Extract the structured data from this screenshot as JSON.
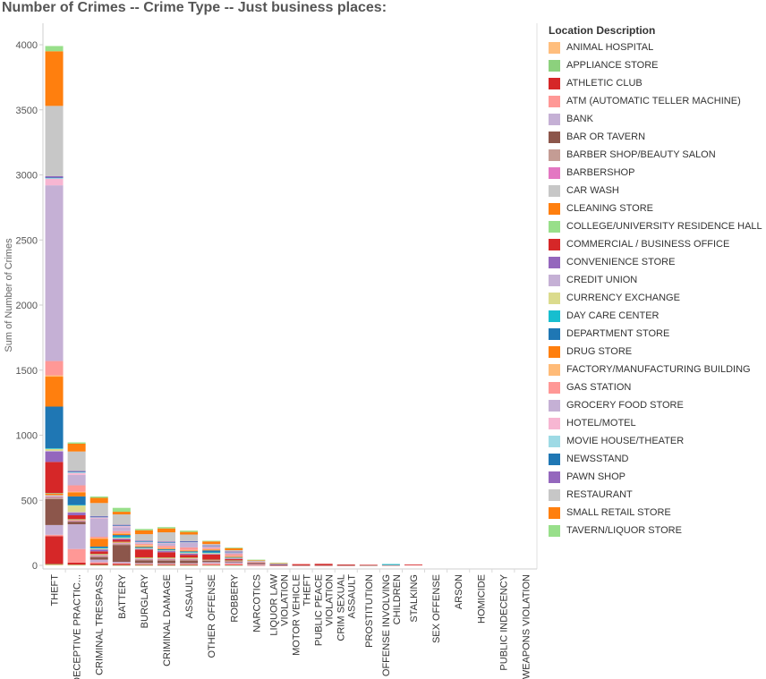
{
  "chart_data": {
    "type": "bar",
    "stacked": true,
    "title": "Number of Crimes --  Crime Type -- Just business places:",
    "xlabel": "",
    "ylabel": "Sum of Number of Crimes",
    "ylim": [
      0,
      4100
    ],
    "yticks": [
      0,
      500,
      1000,
      1500,
      2000,
      2500,
      3000,
      3500,
      4000
    ],
    "grid": false,
    "legend_position": "right",
    "legend_title": "Location Description",
    "categories": [
      "THEFT",
      "DECEPTIVE PRACTIC...",
      "CRIMINAL TRESPASS",
      "BATTERY",
      "BURGLARY",
      "CRIMINAL DAMAGE",
      "ASSAULT",
      "OTHER OFFENSE",
      "ROBBERY",
      "NARCOTICS",
      "LIQUOR LAW VIOLATION",
      "MOTOR VEHICLE THEFT",
      "PUBLIC PEACE VIOLATION",
      "CRIM SEXUAL ASSAULT",
      "PROSTITUTION",
      "OFFENSE INVOLVING CHILDREN",
      "STALKING",
      "SEX OFFENSE",
      "ARSON",
      "HOMICIDE",
      "PUBLIC INDECENCY",
      "WEAPONS VIOLATION"
    ],
    "category_lines": [
      [
        "THEFT"
      ],
      [
        "DECEPTIVE PRACTIC..."
      ],
      [
        "CRIMINAL TRESPASS"
      ],
      [
        "BATTERY"
      ],
      [
        "BURGLARY"
      ],
      [
        "CRIMINAL DAMAGE"
      ],
      [
        "ASSAULT"
      ],
      [
        "OTHER OFFENSE"
      ],
      [
        "ROBBERY"
      ],
      [
        "NARCOTICS"
      ],
      [
        "LIQUOR LAW",
        "VIOLATION"
      ],
      [
        "MOTOR VEHICLE",
        "THEFT"
      ],
      [
        "PUBLIC PEACE",
        "VIOLATION"
      ],
      [
        "CRIM SEXUAL",
        "ASSAULT"
      ],
      [
        "PROSTITUTION"
      ],
      [
        "OFFENSE INVOLVING",
        "CHILDREN"
      ],
      [
        "STALKING"
      ],
      [
        "SEX OFFENSE"
      ],
      [
        "ARSON"
      ],
      [
        "HOMICIDE"
      ],
      [
        "PUBLIC INDECENCY"
      ],
      [
        "WEAPONS VIOLATION"
      ]
    ],
    "series": [
      {
        "name": "ANIMAL HOSPITAL",
        "color": "#ffbe7d",
        "values": [
          5,
          3,
          2,
          1,
          1,
          1,
          1,
          1,
          0,
          0,
          0,
          0,
          0,
          0,
          0,
          0,
          0,
          0,
          0,
          0,
          0,
          0
        ]
      },
      {
        "name": "APPLIANCE STORE",
        "color": "#8cd17d",
        "values": [
          5,
          3,
          2,
          1,
          2,
          1,
          1,
          1,
          1,
          0,
          0,
          0,
          0,
          0,
          0,
          0,
          0,
          0,
          0,
          0,
          0,
          0
        ]
      },
      {
        "name": "ATHLETIC CLUB",
        "color": "#d62728",
        "values": [
          215,
          15,
          10,
          10,
          5,
          5,
          5,
          3,
          3,
          2,
          1,
          1,
          1,
          1,
          0,
          0,
          0,
          0,
          0,
          0,
          0,
          0
        ]
      },
      {
        "name": "ATM (AUTOMATIC TELLER MACHINE)",
        "color": "#ff9896",
        "values": [
          10,
          105,
          10,
          5,
          5,
          5,
          5,
          10,
          10,
          2,
          0,
          0,
          0,
          0,
          0,
          0,
          0,
          0,
          0,
          0,
          0,
          0
        ]
      },
      {
        "name": "BANK",
        "color": "#c5b0d5",
        "values": [
          75,
          190,
          20,
          10,
          5,
          5,
          5,
          10,
          10,
          2,
          0,
          0,
          0,
          0,
          0,
          0,
          0,
          0,
          0,
          0,
          0,
          0
        ]
      },
      {
        "name": "BAR OR TAVERN",
        "color": "#8c564b",
        "values": [
          200,
          20,
          20,
          130,
          20,
          20,
          20,
          10,
          5,
          5,
          3,
          1,
          1,
          1,
          1,
          0,
          0,
          0,
          0,
          0,
          0,
          0
        ]
      },
      {
        "name": "BARBER SHOP/BEAUTY SALON",
        "color": "#c49c94",
        "values": [
          15,
          5,
          10,
          10,
          10,
          10,
          10,
          3,
          3,
          1,
          0,
          0,
          0,
          0,
          0,
          0,
          0,
          0,
          0,
          0,
          0,
          0
        ]
      },
      {
        "name": "BARBERSHOP",
        "color": "#e377c2",
        "values": [
          5,
          2,
          2,
          2,
          2,
          2,
          2,
          1,
          1,
          0,
          0,
          0,
          0,
          0,
          0,
          0,
          0,
          0,
          0,
          0,
          0,
          0
        ]
      },
      {
        "name": "CAR WASH",
        "color": "#c7c7c7",
        "values": [
          10,
          5,
          5,
          5,
          5,
          5,
          5,
          2,
          2,
          0,
          0,
          0,
          0,
          0,
          0,
          0,
          0,
          0,
          0,
          0,
          0,
          0
        ]
      },
      {
        "name": "CLEANING STORE",
        "color": "#ff7f0e",
        "values": [
          10,
          5,
          5,
          5,
          5,
          5,
          5,
          2,
          2,
          0,
          0,
          0,
          0,
          0,
          0,
          0,
          0,
          0,
          0,
          0,
          0,
          0
        ]
      },
      {
        "name": "COLLEGE/UNIVERSITY RESIDENCE HALL",
        "color": "#98df8a",
        "values": [
          5,
          2,
          2,
          2,
          2,
          2,
          2,
          1,
          1,
          0,
          0,
          0,
          0,
          0,
          0,
          0,
          0,
          0,
          0,
          0,
          0,
          0
        ]
      },
      {
        "name": "COMMERCIAL / BUSINESS OFFICE",
        "color": "#d62728",
        "values": [
          240,
          30,
          20,
          15,
          60,
          40,
          20,
          40,
          10,
          5,
          3,
          8,
          10,
          5,
          4,
          2,
          6,
          0,
          0,
          0,
          0,
          0
        ]
      },
      {
        "name": "CONVENIENCE STORE",
        "color": "#9467bd",
        "values": [
          80,
          20,
          15,
          10,
          5,
          10,
          10,
          5,
          5,
          2,
          1,
          0,
          0,
          0,
          0,
          0,
          0,
          0,
          0,
          0,
          0,
          0
        ]
      },
      {
        "name": "CREDIT UNION",
        "color": "#c5b0d5",
        "values": [
          5,
          5,
          2,
          2,
          2,
          2,
          2,
          1,
          1,
          0,
          0,
          0,
          0,
          0,
          0,
          0,
          0,
          0,
          0,
          0,
          0,
          0
        ]
      },
      {
        "name": "CURRENCY EXCHANGE",
        "color": "#dbdb8d",
        "values": [
          15,
          50,
          5,
          5,
          5,
          5,
          5,
          5,
          5,
          0,
          0,
          0,
          0,
          0,
          0,
          0,
          0,
          0,
          0,
          0,
          0,
          0
        ]
      },
      {
        "name": "DAY CARE CENTER",
        "color": "#17becf",
        "values": [
          5,
          5,
          5,
          10,
          2,
          2,
          5,
          5,
          0,
          0,
          0,
          0,
          0,
          0,
          0,
          8,
          0,
          0,
          0,
          0,
          0,
          0
        ]
      },
      {
        "name": "DEPARTMENT STORE",
        "color": "#1f77b4",
        "values": [
          320,
          65,
          10,
          10,
          5,
          5,
          5,
          15,
          5,
          2,
          1,
          0,
          0,
          0,
          0,
          0,
          0,
          0,
          0,
          0,
          0,
          0
        ]
      },
      {
        "name": "DRUG STORE",
        "color": "#ff7f0e",
        "values": [
          230,
          30,
          60,
          10,
          5,
          5,
          5,
          5,
          5,
          2,
          0,
          0,
          0,
          0,
          0,
          0,
          0,
          0,
          0,
          0,
          0,
          0
        ]
      },
      {
        "name": "FACTORY/MANUFACTURING BUILDING",
        "color": "#ffbb78",
        "values": [
          10,
          5,
          5,
          5,
          10,
          5,
          5,
          5,
          2,
          0,
          0,
          0,
          0,
          0,
          0,
          0,
          0,
          0,
          0,
          0,
          0,
          0
        ]
      },
      {
        "name": "GAS STATION",
        "color": "#ff9896",
        "values": [
          110,
          50,
          10,
          15,
          10,
          15,
          20,
          10,
          15,
          3,
          2,
          2,
          0,
          0,
          0,
          0,
          0,
          0,
          0,
          0,
          0,
          0
        ]
      },
      {
        "name": "GROCERY FOOD STORE",
        "color": "#c5b0d5",
        "values": [
          1350,
          80,
          140,
          30,
          10,
          20,
          35,
          10,
          15,
          5,
          3,
          0,
          0,
          0,
          0,
          0,
          0,
          0,
          0,
          0,
          0,
          0
        ]
      },
      {
        "name": "HOTEL/MOTEL",
        "color": "#f7b6d2",
        "values": [
          50,
          15,
          10,
          10,
          5,
          5,
          5,
          5,
          2,
          0,
          0,
          0,
          0,
          0,
          0,
          0,
          0,
          0,
          0,
          0,
          0,
          0
        ]
      },
      {
        "name": "MOVIE HOUSE/THEATER",
        "color": "#9edae5",
        "values": [
          5,
          5,
          2,
          2,
          2,
          2,
          2,
          1,
          1,
          0,
          0,
          0,
          0,
          0,
          0,
          0,
          0,
          0,
          0,
          0,
          0,
          0
        ]
      },
      {
        "name": "NEWSSTAND",
        "color": "#1f77b4",
        "values": [
          5,
          5,
          2,
          2,
          2,
          2,
          2,
          1,
          1,
          0,
          0,
          0,
          0,
          0,
          0,
          0,
          0,
          0,
          0,
          0,
          0,
          0
        ]
      },
      {
        "name": "PAWN SHOP",
        "color": "#9467bd",
        "values": [
          10,
          5,
          5,
          5,
          5,
          5,
          5,
          2,
          2,
          0,
          0,
          0,
          0,
          0,
          0,
          0,
          0,
          0,
          0,
          0,
          0,
          0
        ]
      },
      {
        "name": "RESTAURANT",
        "color": "#c7c7c7",
        "values": [
          540,
          150,
          100,
          80,
          50,
          70,
          50,
          10,
          10,
          5,
          3,
          0,
          0,
          0,
          0,
          0,
          0,
          0,
          0,
          0,
          0,
          0
        ]
      },
      {
        "name": "SMALL RETAIL STORE",
        "color": "#ff7f0e",
        "values": [
          420,
          60,
          40,
          20,
          30,
          30,
          20,
          20,
          15,
          3,
          1,
          0,
          0,
          0,
          0,
          0,
          0,
          0,
          0,
          0,
          0,
          0
        ]
      },
      {
        "name": "TAVERN/LIQUOR STORE",
        "color": "#98df8a",
        "values": [
          40,
          10,
          10,
          30,
          10,
          10,
          10,
          5,
          5,
          5,
          2,
          0,
          0,
          0,
          0,
          0,
          0,
          0,
          0,
          0,
          0,
          0
        ]
      }
    ]
  }
}
